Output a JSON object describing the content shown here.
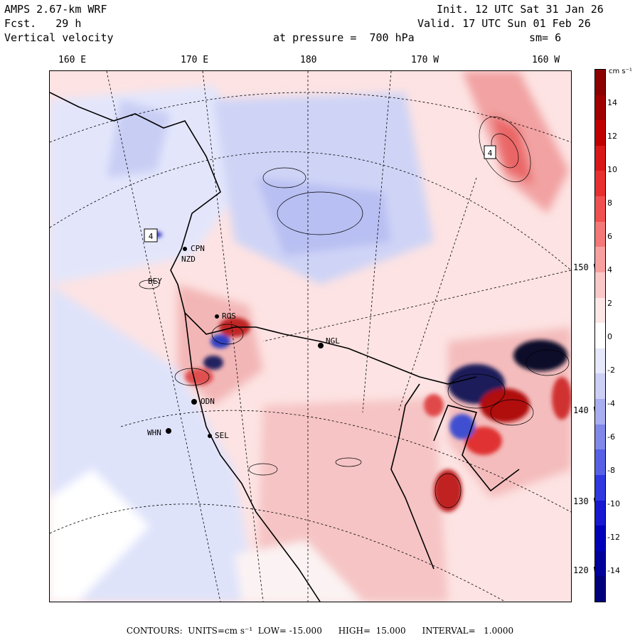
{
  "header": {
    "model": "AMPS 2.67-km WRF",
    "forecast": "Fcst.   29 h",
    "field": "Vertical velocity",
    "init": "Init. 12 UTC Sat 31 Jan 26",
    "valid": "Valid. 17 UTC Sun 01 Feb 26",
    "pressure": "at pressure =  700 hPa",
    "smooth": "sm= 6"
  },
  "longitude_labels": [
    "160 E",
    "170 E",
    "180",
    "170 W",
    "160 W"
  ],
  "latitude_labels": [
    "150 W",
    "140 W",
    "130 W",
    "120 W"
  ],
  "stations": [
    "CPN",
    "NZD",
    "ROS",
    "NGL",
    "ODN",
    "WHN",
    "SEL",
    "BEY"
  ],
  "box_labels": [
    "4",
    "4"
  ],
  "colorbar": {
    "unit": "cm s⁻¹",
    "ticks": [
      "14",
      "12",
      "10",
      "8",
      "6",
      "4",
      "2",
      "0",
      "-2",
      "-4",
      "-6",
      "-8",
      "-10",
      "-12",
      "-14"
    ],
    "colors": [
      "#8b0000",
      "#a00000",
      "#c00000",
      "#d81818",
      "#e83030",
      "#f05050",
      "#f47878",
      "#f8a0a0",
      "#fac8c8",
      "#fde6e6",
      "#ffffff",
      "#e6e8fb",
      "#ccd0f5",
      "#a8aef0",
      "#8088ea",
      "#5860e6",
      "#3038e0",
      "#1818d0",
      "#0000b8",
      "#00009a",
      "#00007c"
    ]
  },
  "footer": "CONTOURS:  UNITS=cm s⁻¹  LOW= -15.000      HIGH=  15.000      INTERVAL=   1.0000"
}
